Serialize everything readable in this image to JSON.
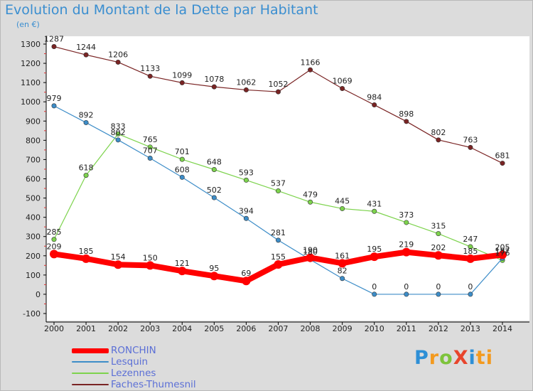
{
  "title": "Evolution du Montant de la Dette par Habitant",
  "unit": "(en €)",
  "logo": {
    "text": "ProXiti",
    "parts": [
      "P",
      "r",
      "o",
      "X",
      "i",
      "ti"
    ]
  },
  "chart_data": {
    "type": "line",
    "title": "Evolution du Montant de la Dette par Habitant",
    "ylabel": "(en €)",
    "x": [
      2000,
      2001,
      2002,
      2003,
      2004,
      2005,
      2006,
      2007,
      2008,
      2009,
      2010,
      2011,
      2012,
      2013,
      2014
    ],
    "ylim": [
      -100,
      1300
    ],
    "yticks": [
      -100,
      0,
      100,
      200,
      300,
      400,
      500,
      600,
      700,
      800,
      900,
      1000,
      1100,
      1200,
      1300
    ],
    "grid": false,
    "legend_position": "bottom-left",
    "series": [
      {
        "name": "RONCHIN",
        "color": "#ff0000",
        "values": [
          209,
          185,
          154,
          150,
          121,
          95,
          69,
          155,
          190,
          161,
          195,
          219,
          202,
          185,
          205
        ]
      },
      {
        "name": "Lesquin",
        "color": "#3d8dc8",
        "values": [
          979,
          892,
          802,
          707,
          608,
          502,
          394,
          281,
          180,
          82,
          0,
          0,
          0,
          0,
          187
        ]
      },
      {
        "name": "Lezennes",
        "color": "#7dd34d",
        "values": [
          285,
          618,
          833,
          765,
          701,
          648,
          593,
          537,
          479,
          445,
          431,
          373,
          315,
          247,
          176
        ]
      },
      {
        "name": "Faches-Thumesnil",
        "color": "#7a2424",
        "values": [
          1287,
          1244,
          1206,
          1133,
          1099,
          1078,
          1062,
          1052,
          1166,
          1069,
          984,
          898,
          802,
          763,
          681
        ]
      }
    ]
  }
}
